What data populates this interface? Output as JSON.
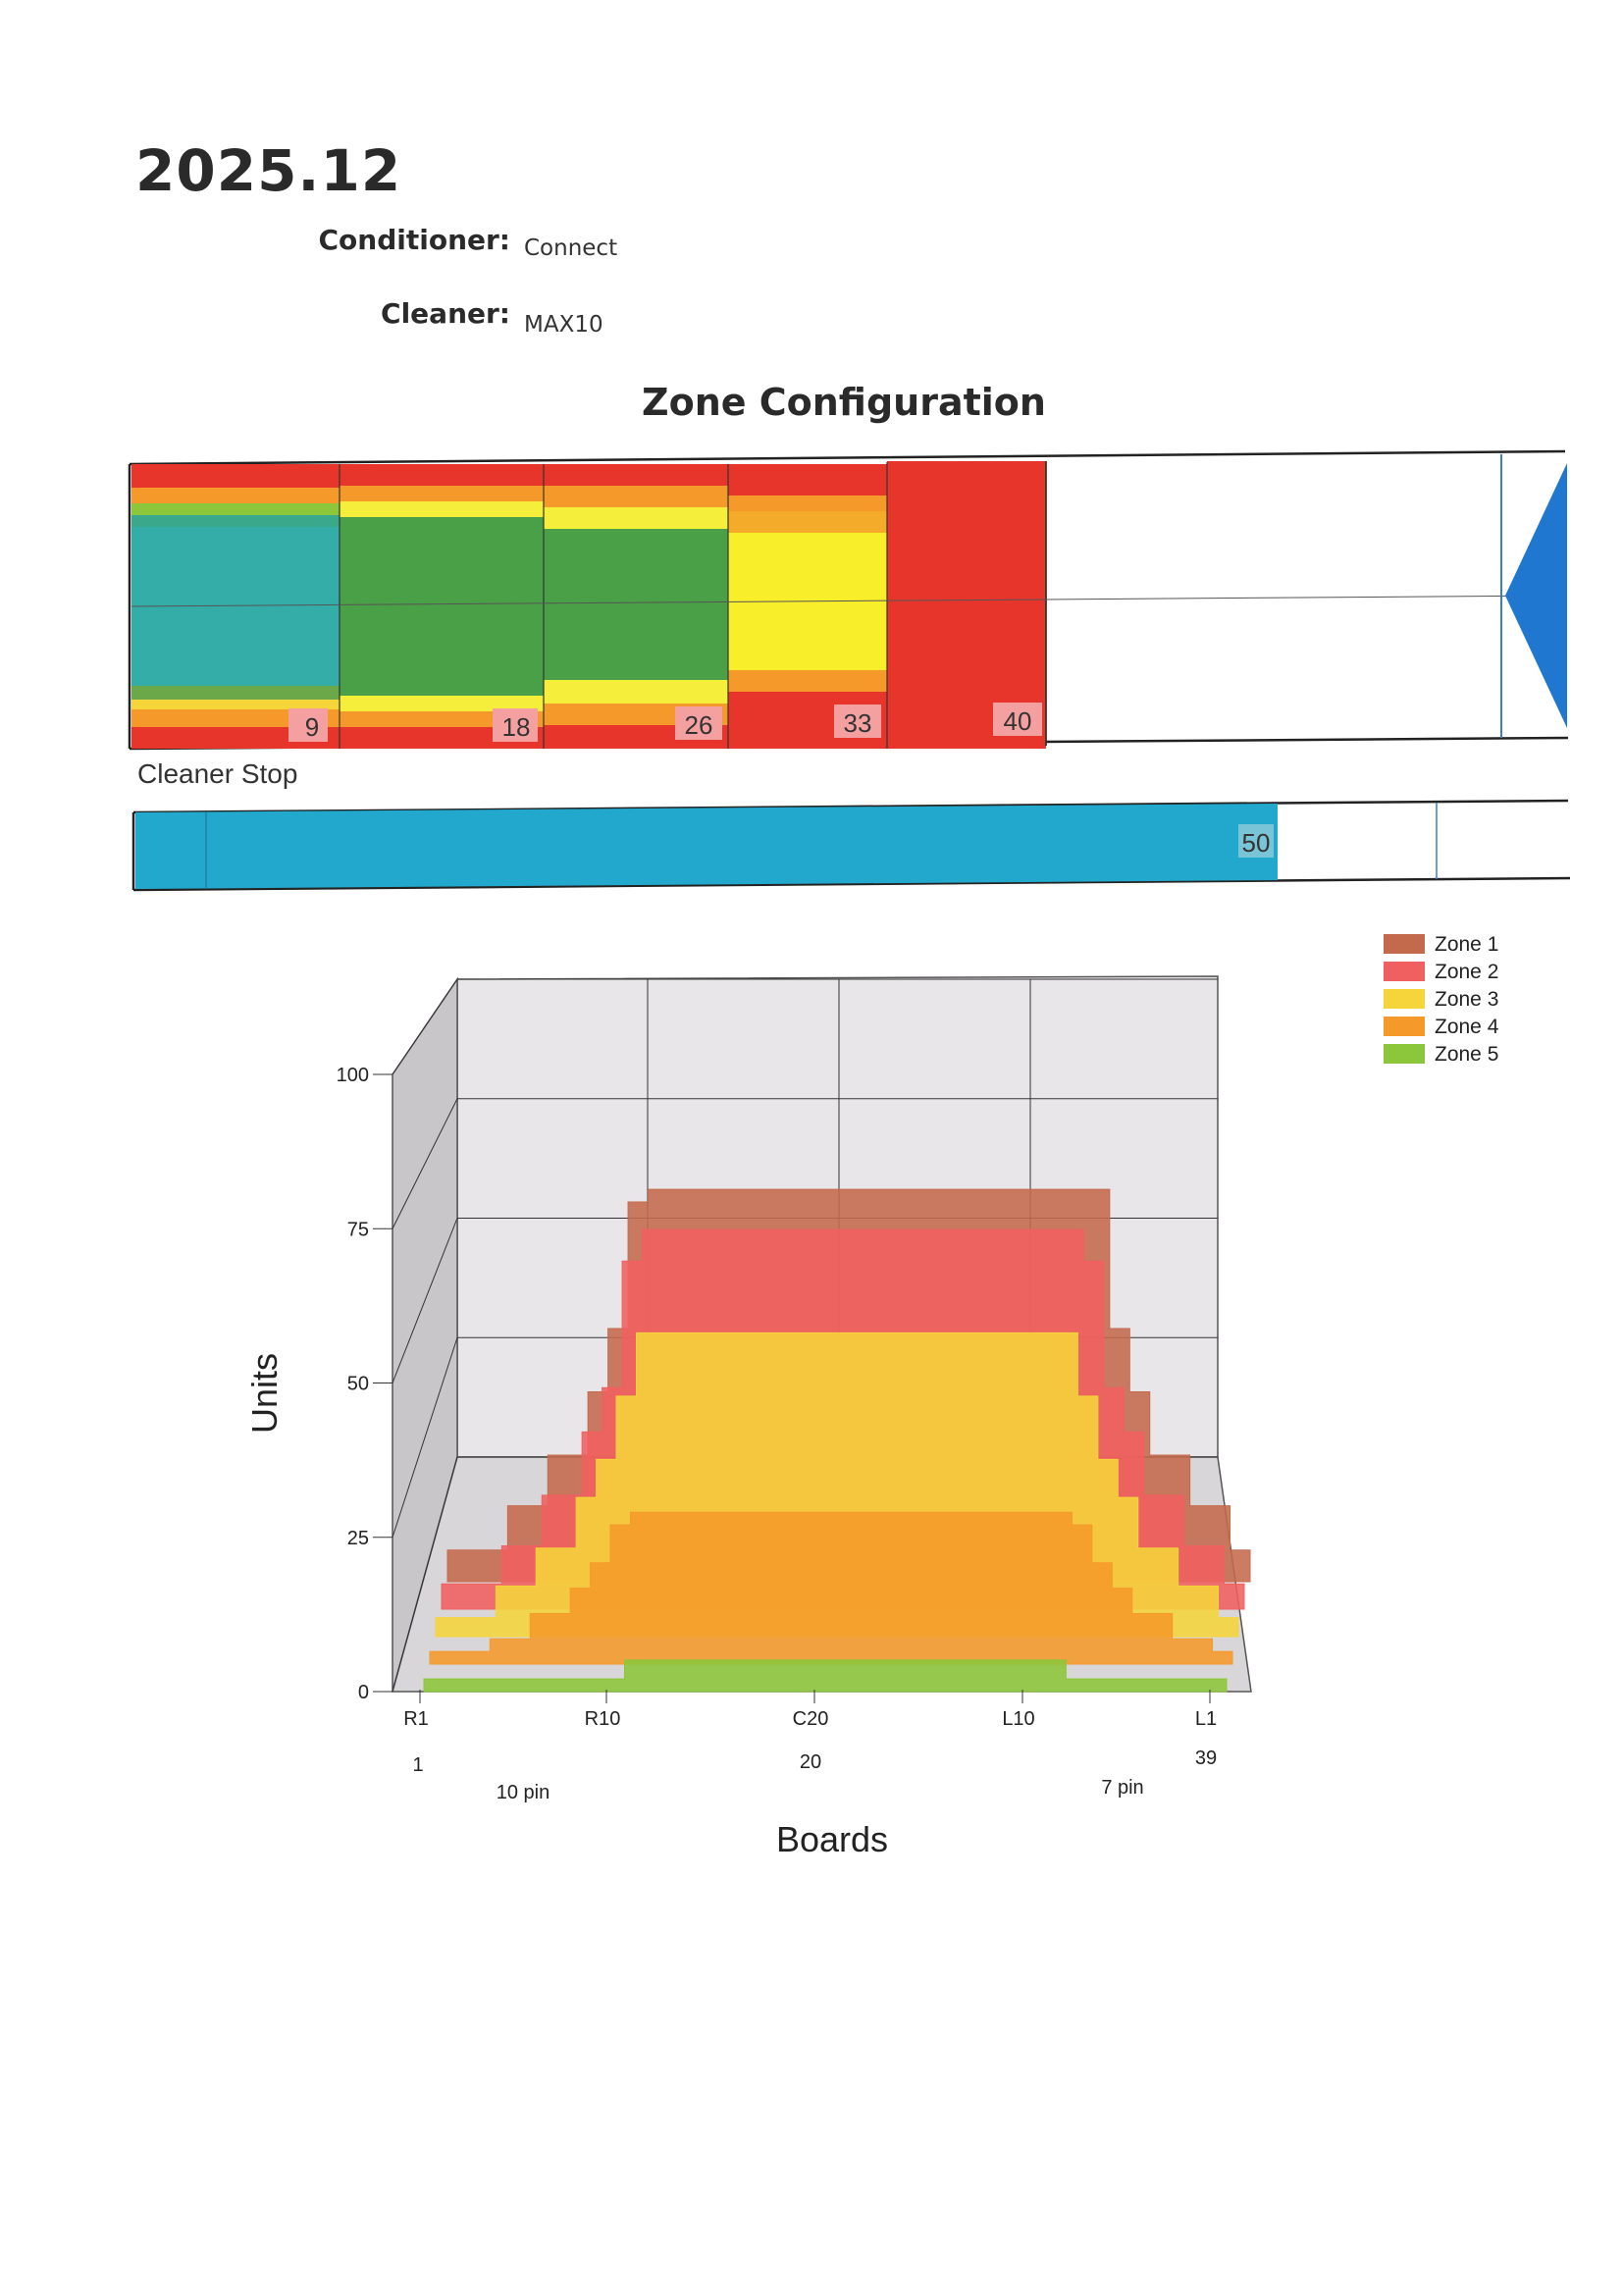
{
  "header": {
    "title": "2025.12",
    "conditioner_label": "Conditioner:",
    "conditioner_value": "Connect",
    "cleaner_label": "Cleaner:",
    "cleaner_value": "MAX10"
  },
  "zone_config": {
    "title": "Zone Configuration",
    "markers": [
      "9",
      "18",
      "26",
      "33",
      "40"
    ],
    "cleaner_stop_label": "Cleaner Stop",
    "cleaner_stop_value": "50"
  },
  "chart_data": {
    "type": "area",
    "subtype": "3d-stacked-profile",
    "ylabel": "Units",
    "xlabel": "Boards",
    "ylim": [
      0,
      100
    ],
    "yticks": [
      "0",
      "25",
      "50",
      "75",
      "100"
    ],
    "x_tick_labels": [
      "R1",
      "R10",
      "C20",
      "L10",
      "L1"
    ],
    "x_tick_boards": [
      "1",
      "20",
      "39"
    ],
    "annotations": [
      "10 pin",
      "7 pin"
    ],
    "legend_position": "top-right",
    "grid": true,
    "colors": {
      "Zone 1": "#c46a4c",
      "Zone 2": "#f06060",
      "Zone 3": "#f5d53a",
      "Zone 4": "#f59a2a",
      "Zone 5": "#8cc63a"
    },
    "series": [
      {
        "name": "Zone 1",
        "values": [
          5,
          5,
          5,
          12,
          12,
          20,
          20,
          30,
          40,
          60,
          62,
          62,
          62,
          62,
          62,
          62,
          62,
          62,
          62,
          62,
          62,
          62,
          62,
          62,
          62,
          62,
          62,
          62,
          62,
          62,
          62,
          62,
          62,
          40,
          30,
          20,
          20,
          12,
          12,
          5
        ]
      },
      {
        "name": "Zone 2",
        "values": [
          4,
          4,
          4,
          10,
          10,
          18,
          18,
          28,
          35,
          55,
          60,
          60,
          60,
          60,
          60,
          60,
          60,
          60,
          60,
          60,
          60,
          60,
          60,
          60,
          60,
          60,
          60,
          60,
          60,
          60,
          60,
          60,
          55,
          35,
          28,
          18,
          18,
          10,
          10,
          4
        ]
      },
      {
        "name": "Zone 3",
        "values": [
          3,
          3,
          3,
          8,
          8,
          14,
          14,
          22,
          28,
          38,
          48,
          48,
          48,
          48,
          48,
          48,
          48,
          48,
          48,
          48,
          48,
          48,
          48,
          48,
          48,
          48,
          48,
          48,
          48,
          48,
          48,
          48,
          38,
          28,
          22,
          14,
          14,
          8,
          8,
          3
        ]
      },
      {
        "name": "Zone 4",
        "values": [
          2,
          2,
          2,
          4,
          4,
          8,
          8,
          12,
          16,
          22,
          24,
          24,
          24,
          24,
          24,
          24,
          24,
          24,
          24,
          24,
          24,
          24,
          24,
          24,
          24,
          24,
          24,
          24,
          24,
          24,
          24,
          24,
          22,
          16,
          12,
          8,
          8,
          4,
          4,
          2
        ]
      },
      {
        "name": "Zone 5",
        "values": [
          2,
          2,
          2,
          2,
          2,
          2,
          2,
          2,
          2,
          2,
          5,
          5,
          5,
          5,
          5,
          5,
          5,
          5,
          5,
          5,
          5,
          5,
          5,
          5,
          5,
          5,
          5,
          5,
          5,
          5,
          5,
          5,
          2,
          2,
          2,
          2,
          2,
          2,
          2,
          2
        ]
      }
    ]
  }
}
